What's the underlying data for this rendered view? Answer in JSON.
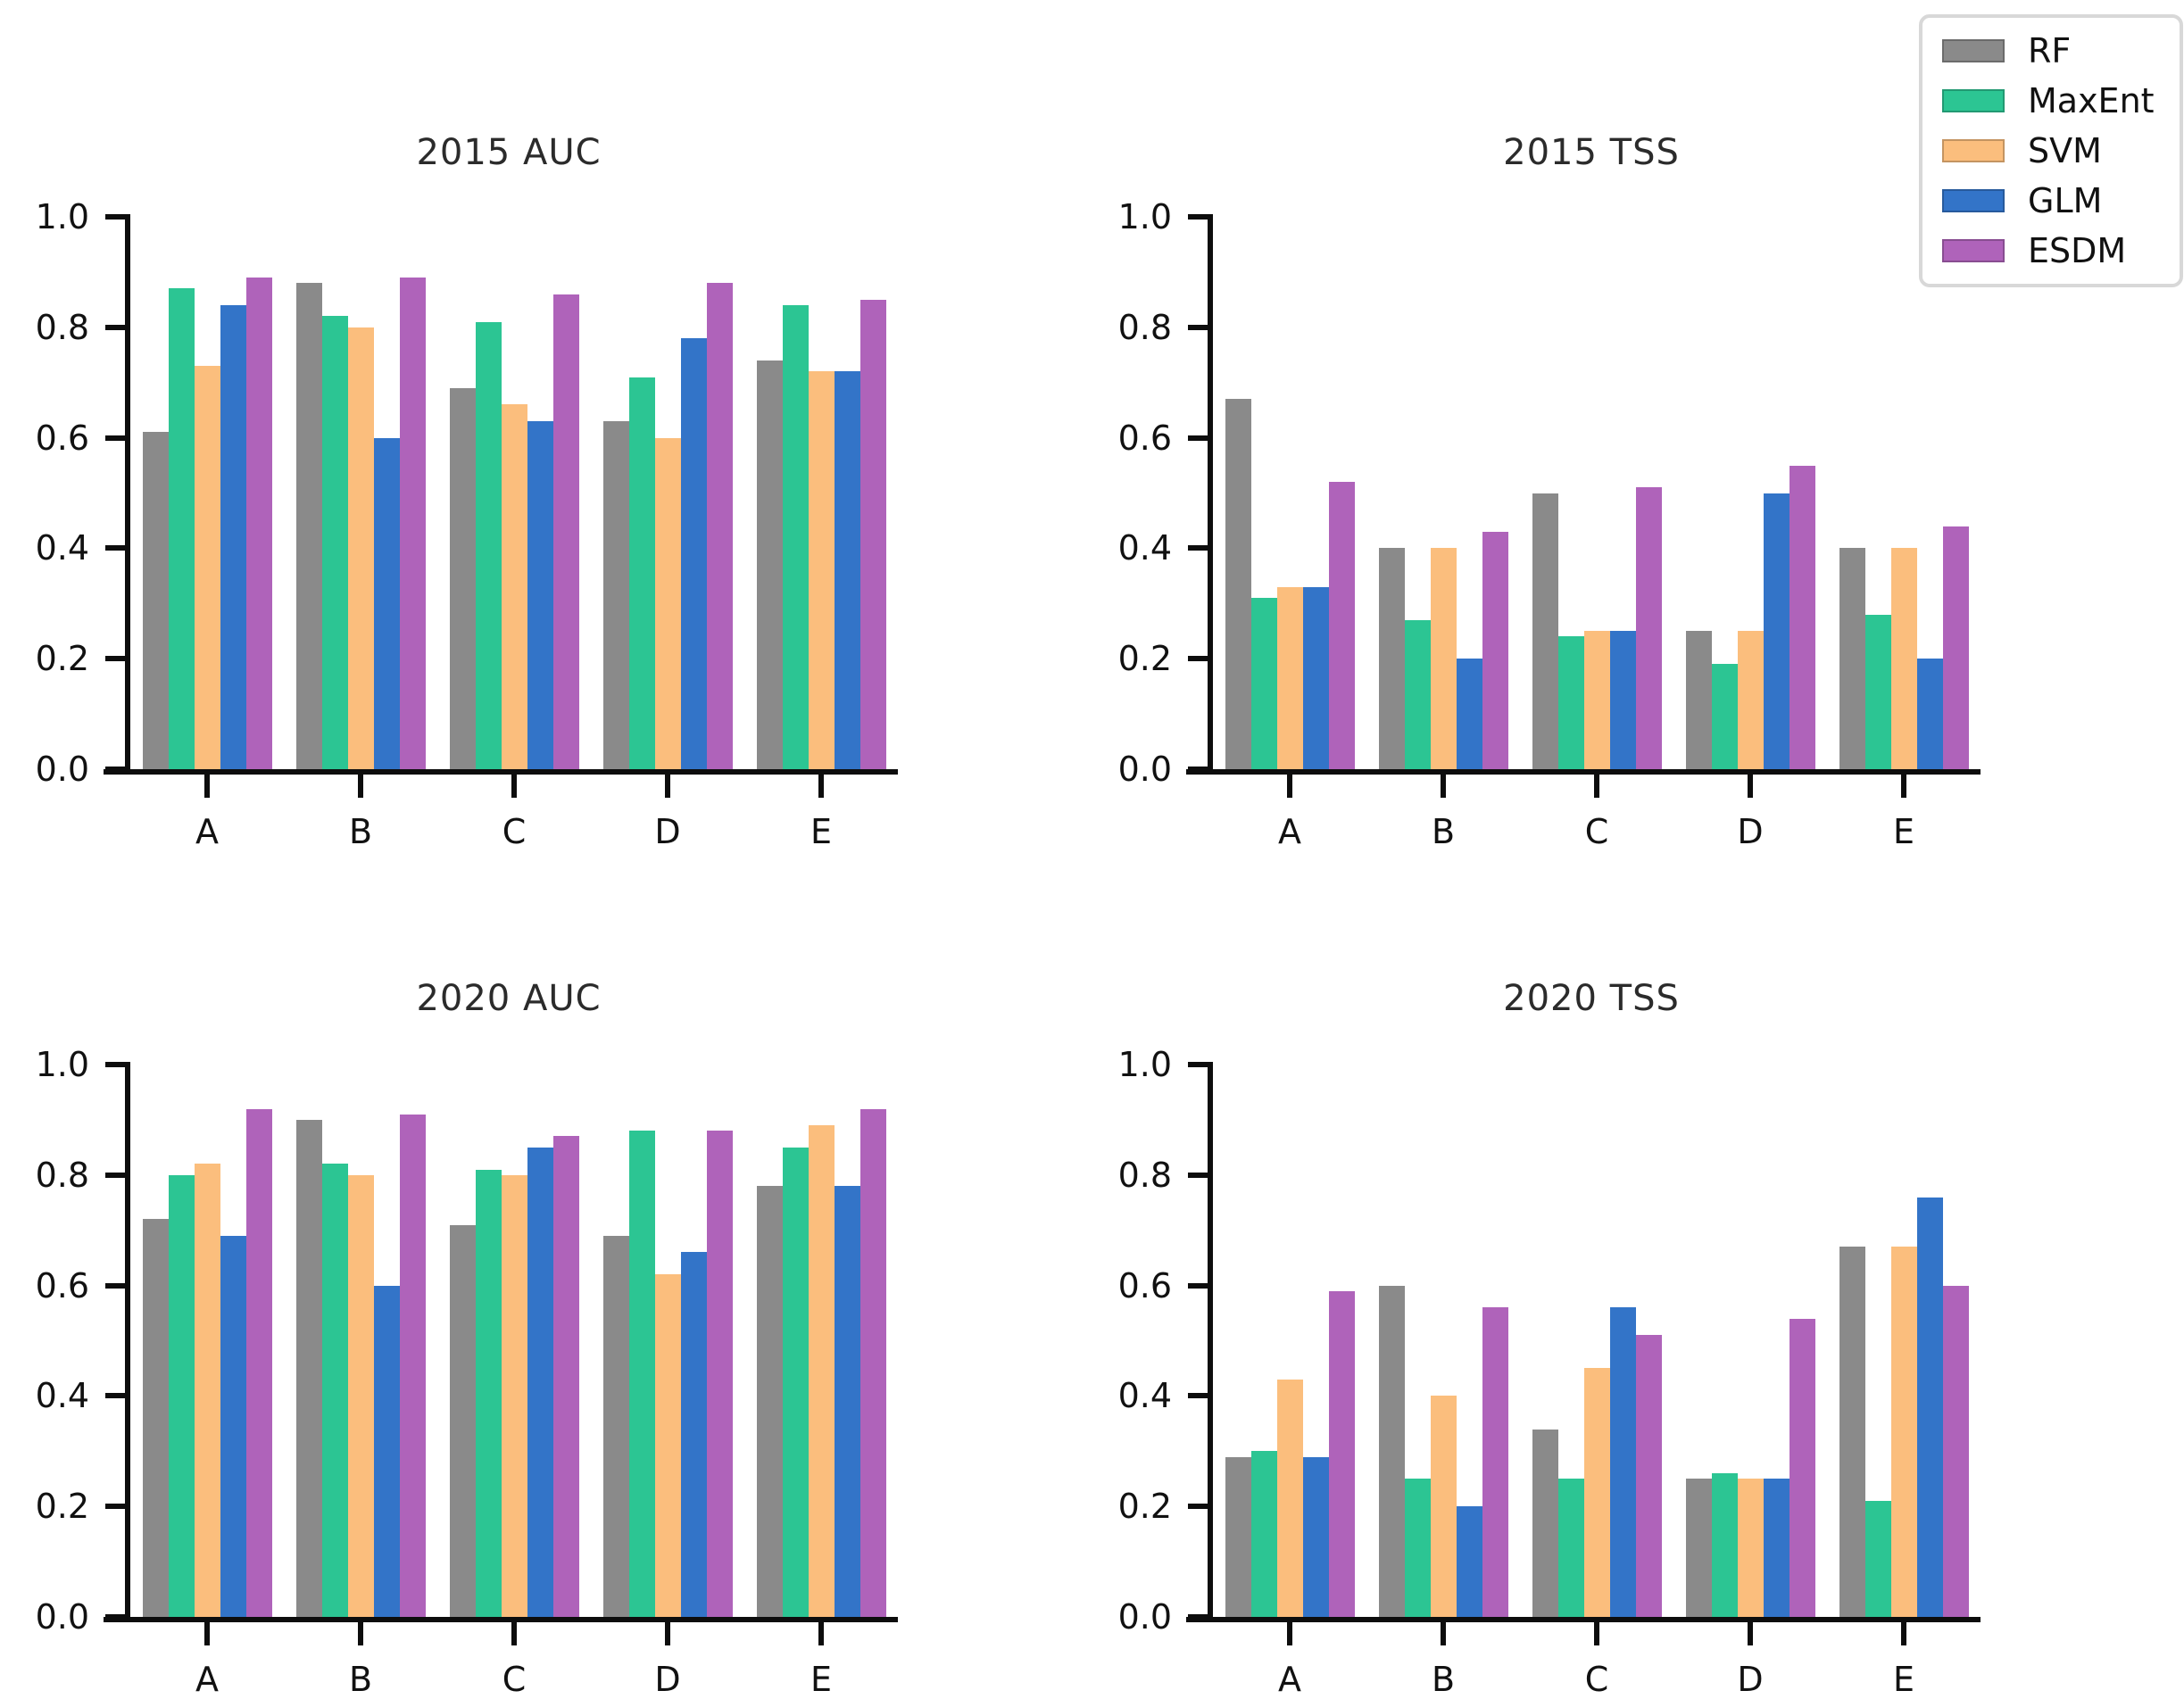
{
  "figure": {
    "background": "#ffffff",
    "text_color": "#111111",
    "spine_color": "#0d0d0d"
  },
  "legend": {
    "position": "top-right",
    "items": [
      {
        "label": "RF",
        "color": "#8a8a8a"
      },
      {
        "label": "MaxEnt",
        "color": "#2cc593"
      },
      {
        "label": "SVM",
        "color": "#fbbe7d"
      },
      {
        "label": "GLM",
        "color": "#3374c8"
      },
      {
        "label": "ESDM",
        "color": "#af63ba"
      }
    ]
  },
  "chart_data": [
    {
      "type": "bar",
      "title": "2015 AUC",
      "categories": [
        "A",
        "B",
        "C",
        "D",
        "E"
      ],
      "ylim": [
        0,
        1.0
      ],
      "yticks": [
        "0.0",
        "0.2",
        "0.4",
        "0.6",
        "0.8",
        "1.0"
      ],
      "grid": false,
      "series": [
        {
          "name": "RF",
          "color": "#8a8a8a",
          "values": [
            0.61,
            0.88,
            0.69,
            0.63,
            0.74
          ]
        },
        {
          "name": "MaxEnt",
          "color": "#2cc593",
          "values": [
            0.87,
            0.82,
            0.81,
            0.71,
            0.84
          ]
        },
        {
          "name": "SVM",
          "color": "#fbbe7d",
          "values": [
            0.73,
            0.8,
            0.66,
            0.6,
            0.72
          ]
        },
        {
          "name": "GLM",
          "color": "#3374c8",
          "values": [
            0.84,
            0.6,
            0.63,
            0.78,
            0.72
          ]
        },
        {
          "name": "ESDM",
          "color": "#af63ba",
          "values": [
            0.89,
            0.89,
            0.86,
            0.88,
            0.85
          ]
        }
      ]
    },
    {
      "type": "bar",
      "title": "2015 TSS",
      "categories": [
        "A",
        "B",
        "C",
        "D",
        "E"
      ],
      "ylim": [
        0,
        1.0
      ],
      "yticks": [
        "0.0",
        "0.2",
        "0.4",
        "0.6",
        "0.8",
        "1.0"
      ],
      "grid": false,
      "series": [
        {
          "name": "RF",
          "color": "#8a8a8a",
          "values": [
            0.67,
            0.4,
            0.5,
            0.25,
            0.4
          ]
        },
        {
          "name": "MaxEnt",
          "color": "#2cc593",
          "values": [
            0.31,
            0.27,
            0.24,
            0.19,
            0.28
          ]
        },
        {
          "name": "SVM",
          "color": "#fbbe7d",
          "values": [
            0.33,
            0.4,
            0.25,
            0.25,
            0.4
          ]
        },
        {
          "name": "GLM",
          "color": "#3374c8",
          "values": [
            0.33,
            0.2,
            0.25,
            0.5,
            0.2
          ]
        },
        {
          "name": "ESDM",
          "color": "#af63ba",
          "values": [
            0.52,
            0.43,
            0.51,
            0.55,
            0.44
          ]
        }
      ]
    },
    {
      "type": "bar",
      "title": "2020 AUC",
      "categories": [
        "A",
        "B",
        "C",
        "D",
        "E"
      ],
      "ylim": [
        0,
        1.0
      ],
      "yticks": [
        "0.0",
        "0.2",
        "0.4",
        "0.6",
        "0.8",
        "1.0"
      ],
      "grid": false,
      "series": [
        {
          "name": "RF",
          "color": "#8a8a8a",
          "values": [
            0.72,
            0.9,
            0.71,
            0.69,
            0.78
          ]
        },
        {
          "name": "MaxEnt",
          "color": "#2cc593",
          "values": [
            0.8,
            0.82,
            0.81,
            0.88,
            0.85
          ]
        },
        {
          "name": "SVM",
          "color": "#fbbe7d",
          "values": [
            0.82,
            0.8,
            0.8,
            0.62,
            0.89
          ]
        },
        {
          "name": "GLM",
          "color": "#3374c8",
          "values": [
            0.69,
            0.6,
            0.85,
            0.66,
            0.78
          ]
        },
        {
          "name": "ESDM",
          "color": "#af63ba",
          "values": [
            0.92,
            0.91,
            0.87,
            0.88,
            0.92
          ]
        }
      ]
    },
    {
      "type": "bar",
      "title": "2020 TSS",
      "categories": [
        "A",
        "B",
        "C",
        "D",
        "E"
      ],
      "ylim": [
        0,
        1.0
      ],
      "yticks": [
        "0.0",
        "0.2",
        "0.4",
        "0.6",
        "0.8",
        "1.0"
      ],
      "grid": false,
      "series": [
        {
          "name": "RF",
          "color": "#8a8a8a",
          "values": [
            0.29,
            0.6,
            0.34,
            0.25,
            0.67
          ]
        },
        {
          "name": "MaxEnt",
          "color": "#2cc593",
          "values": [
            0.3,
            0.25,
            0.25,
            0.26,
            0.21
          ]
        },
        {
          "name": "SVM",
          "color": "#fbbe7d",
          "values": [
            0.43,
            0.4,
            0.45,
            0.25,
            0.67
          ]
        },
        {
          "name": "GLM",
          "color": "#3374c8",
          "values": [
            0.29,
            0.2,
            0.56,
            0.25,
            0.76
          ]
        },
        {
          "name": "ESDM",
          "color": "#af63ba",
          "values": [
            0.59,
            0.56,
            0.51,
            0.54,
            0.6
          ]
        }
      ]
    }
  ]
}
